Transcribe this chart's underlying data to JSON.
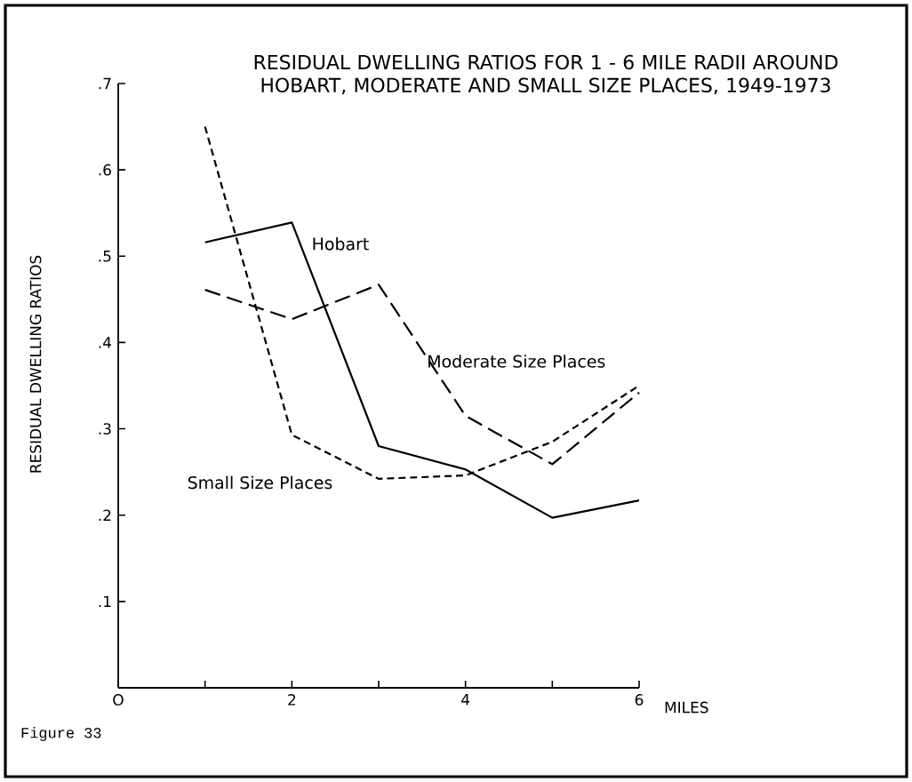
{
  "chart_data": {
    "type": "line",
    "title": "RESIDUAL DWELLING RATIOS FOR 1 - 6 MILE RADII AROUND HOBART, MODERATE AND SMALL SIZE PLACES, 1949-1973",
    "xlabel": "MILES",
    "ylabel": "RESIDUAL DWELLING RATIOS",
    "x": [
      1,
      2,
      3,
      4,
      5,
      6
    ],
    "series": [
      {
        "name": "Hobart",
        "color": "#000000",
        "line_style": "solid",
        "values": [
          0.516,
          0.539,
          0.28,
          0.253,
          0.197,
          0.217
        ]
      },
      {
        "name": "Moderate Size Places",
        "color": "#000000",
        "line_style": "dashed",
        "values": [
          0.461,
          0.427,
          0.467,
          0.315,
          0.259,
          0.342
        ]
      },
      {
        "name": "Small Size Places",
        "color": "#000000",
        "line_style": "dashed",
        "values": [
          0.65,
          0.293,
          0.242,
          0.246,
          0.285,
          0.35
        ]
      }
    ],
    "xlim": [
      0,
      6
    ],
    "ylim": [
      0,
      0.7
    ],
    "xticks": [
      {
        "value": 0,
        "label": "O"
      },
      {
        "value": 1,
        "label": null
      },
      2,
      {
        "value": 3,
        "label": null
      },
      4,
      {
        "value": 5,
        "label": null
      },
      6
    ],
    "yticks": [
      {
        "value": 0.1,
        "label": ".1"
      },
      {
        "value": 0.2,
        "label": ".2"
      },
      {
        "value": 0.3,
        "label": ".3"
      },
      {
        "value": 0.4,
        "label": ".4"
      },
      {
        "value": 0.5,
        "label": ".5"
      },
      {
        "value": 0.6,
        "label": ".6"
      },
      {
        "value": 0.7,
        "label": ".7"
      }
    ],
    "grid": false,
    "legend": false,
    "marker": "none",
    "annotations": [
      "Figure 33"
    ]
  }
}
